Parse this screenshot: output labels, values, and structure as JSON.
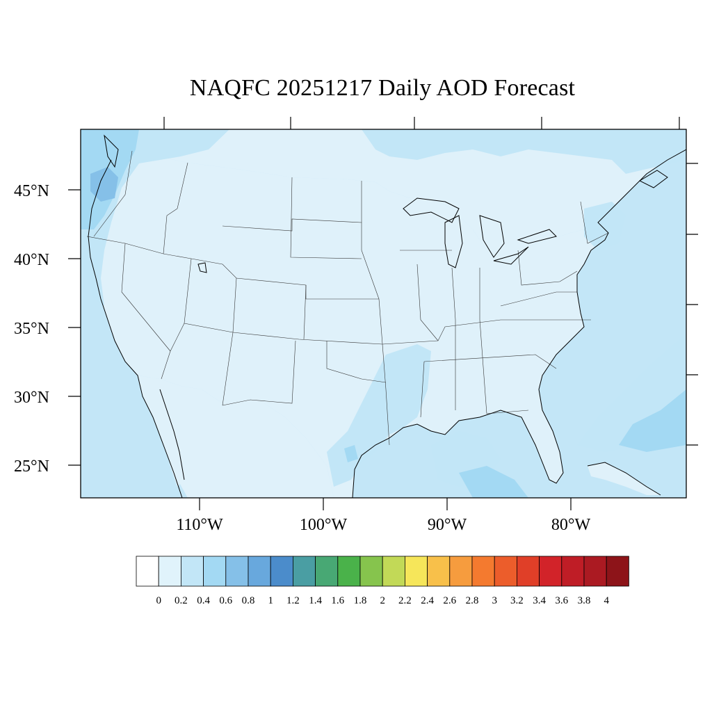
{
  "title": "NAQFC 20251217 Daily AOD Forecast",
  "map": {
    "lat_labels": [
      "45°N",
      "40°N",
      "35°N",
      "30°N",
      "25°N"
    ],
    "lon_labels": [
      "110°W",
      "100°W",
      "90°W",
      "80°W"
    ],
    "land_fill": "#dff1fa",
    "ocean_fill": "#c3e6f7",
    "coast_color": "#000000"
  },
  "colorbar": {
    "labels": [
      "0",
      "0.2",
      "0.4",
      "0.6",
      "0.8",
      "1",
      "1.2",
      "1.4",
      "1.6",
      "1.8",
      "2",
      "2.2",
      "2.4",
      "2.6",
      "2.8",
      "3",
      "3.2",
      "3.4",
      "3.6",
      "3.8",
      "4"
    ],
    "colors": [
      "#ffffff",
      "#e0f3fb",
      "#c2e6f7",
      "#a3d9f3",
      "#85c0e8",
      "#68a8dd",
      "#4b8ccb",
      "#4a9ea3",
      "#48a874",
      "#4ab24a",
      "#86c44d",
      "#c2d957",
      "#f6e65a",
      "#f8c04a",
      "#f69c3e",
      "#f47a2f",
      "#ec5d2b",
      "#e03f28",
      "#d22329",
      "#bf1d26",
      "#ab1a22",
      "#8d1419"
    ]
  }
}
